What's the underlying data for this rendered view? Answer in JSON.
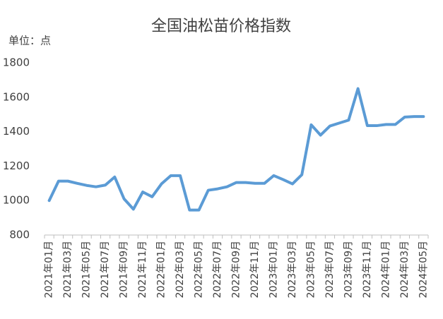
{
  "chart_data": {
    "type": "line",
    "title": "全国油松苗价格指数",
    "unit_label": "单位：点",
    "categories": [
      "2021年01月",
      null,
      "2021年03月",
      null,
      "2021年05月",
      null,
      "2021年07月",
      null,
      "2021年09月",
      null,
      "2021年11月",
      null,
      "2022年01月",
      null,
      "2022年03月",
      null,
      "2022年05月",
      null,
      "2022年07月",
      null,
      "2022年09月",
      null,
      "2022年11月",
      null,
      "2023年01月",
      null,
      "2023年03月",
      null,
      "2023年05月",
      null,
      "2023年07月",
      null,
      "2023年09月",
      null,
      "2023年11月",
      null,
      "2024年01月",
      null,
      "2024年03月",
      null,
      "2024年05月"
    ],
    "values": [
      1000,
      1113,
      1113,
      1100,
      1088,
      1080,
      1090,
      1137,
      1010,
      950,
      1050,
      1022,
      1097,
      1145,
      1145,
      945,
      945,
      1060,
      1068,
      1080,
      1105,
      1105,
      1100,
      1100,
      1145,
      1122,
      1097,
      1150,
      1440,
      1380,
      1433,
      1450,
      1467,
      1650,
      1435,
      1435,
      1442,
      1442,
      1485,
      1488,
      1488
    ],
    "color": "#5b9bd5",
    "ylim": [
      800,
      1800
    ],
    "yticks": [
      800,
      1000,
      1200,
      1400,
      1600,
      1800
    ],
    "grid": false
  }
}
